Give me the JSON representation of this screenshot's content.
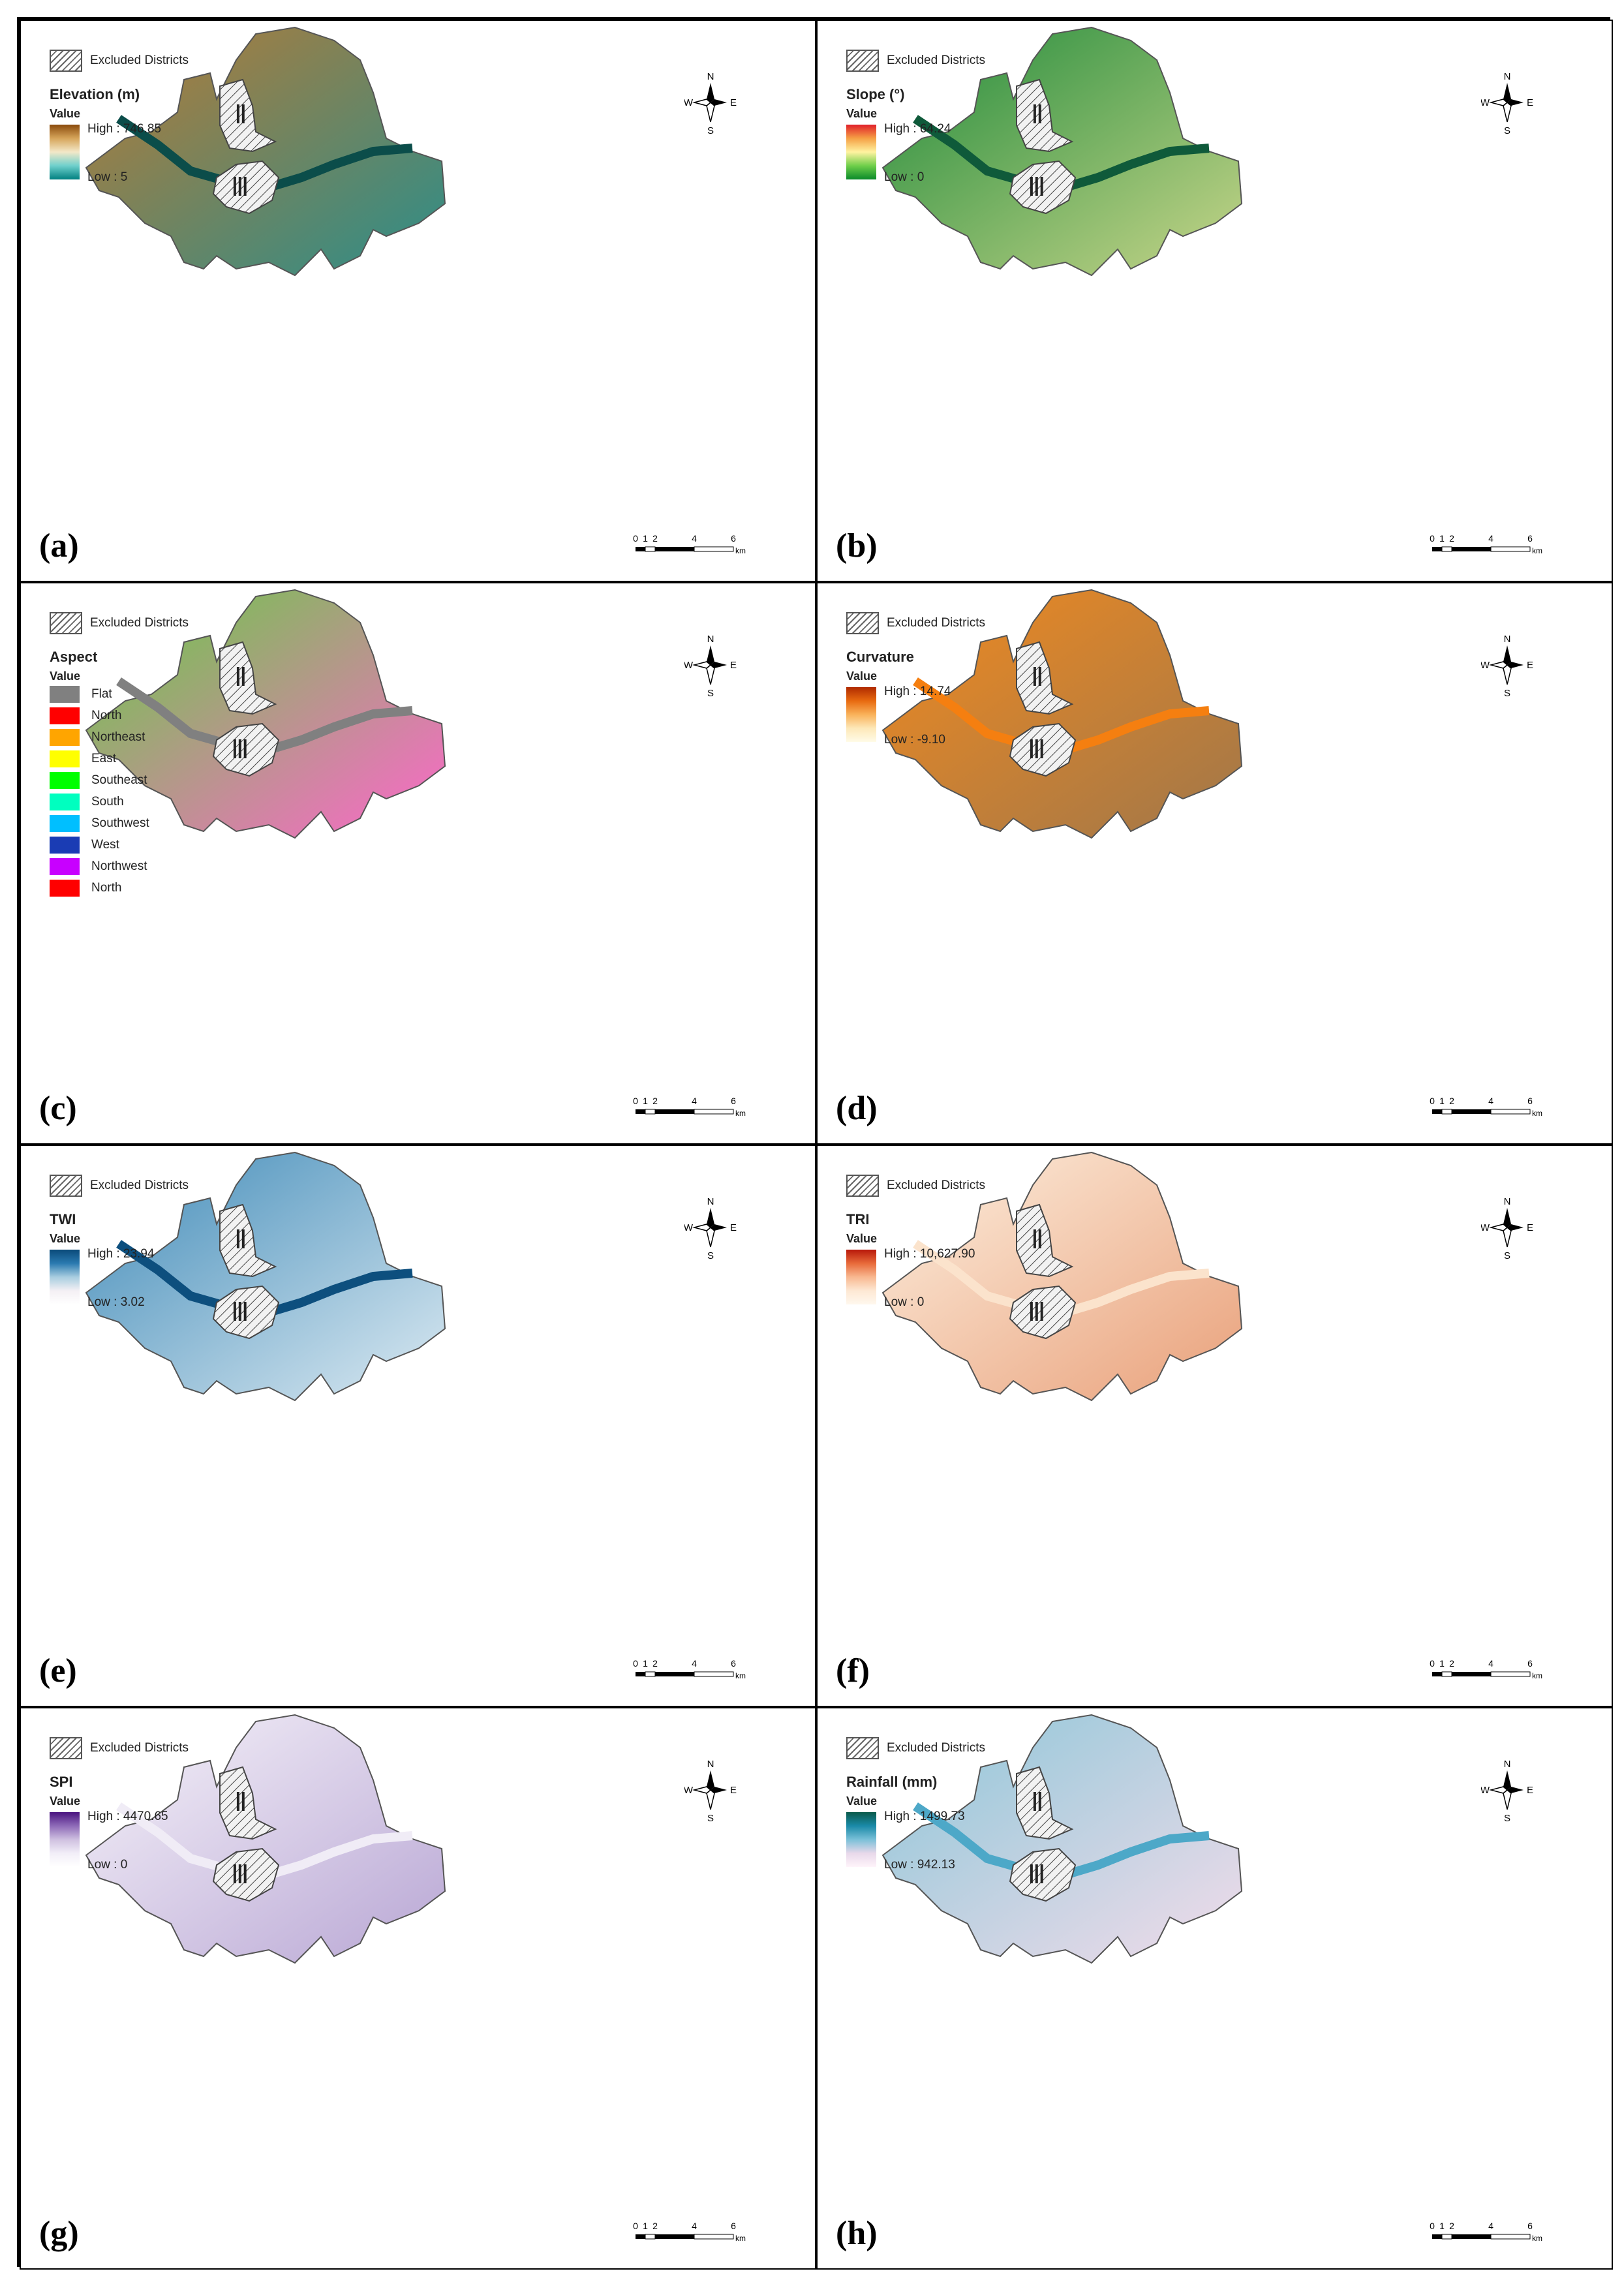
{
  "panels": [
    {
      "id": "a",
      "label": "(a)",
      "excluded": "Excluded Districts",
      "title": "Elevation (m)",
      "value": "Value",
      "high": "High : 746.85",
      "low": "Low : 5",
      "ramp": [
        "#8a4a0c",
        "#d6a55a",
        "#f3e8c8",
        "#6fd0cc",
        "#008080"
      ],
      "fill": [
        "#b87a35",
        "#2b8e8a"
      ],
      "river": "#0b4d4a"
    },
    {
      "id": "b",
      "label": "(b)",
      "excluded": "Excluded Districts",
      "title": "Slope (°)",
      "value": "Value",
      "high": "High : 64.24",
      "low": "Low : 0",
      "ramp": [
        "#e0202a",
        "#f5a045",
        "#fff3a0",
        "#6fcf4a",
        "#0a8a2a"
      ],
      "fill": [
        "#1f8a3a",
        "#c8d68a"
      ],
      "river": "#0f5a3a"
    },
    {
      "id": "c",
      "label": "(c)",
      "excluded": "Excluded Districts",
      "title": "Aspect",
      "value": "Value",
      "categories": [
        {
          "name": "Flat",
          "color": "#808080"
        },
        {
          "name": "North",
          "color": "#ff0000"
        },
        {
          "name": "Northeast",
          "color": "#ffa500"
        },
        {
          "name": "East",
          "color": "#ffff00"
        },
        {
          "name": "Southeast",
          "color": "#00ff00"
        },
        {
          "name": "South",
          "color": "#00ffbf"
        },
        {
          "name": "Southwest",
          "color": "#00bfff"
        },
        {
          "name": "West",
          "color": "#1a3cb4"
        },
        {
          "name": "Northwest",
          "color": "#c800ff"
        },
        {
          "name": "North",
          "color": "#ff0000"
        }
      ],
      "fill": [
        "#66cc44",
        "#ff66cc"
      ],
      "river": "#808080"
    },
    {
      "id": "d",
      "label": "(d)",
      "excluded": "Excluded Districts",
      "title": "Curvature",
      "value": "Value",
      "high": "High : 14.74",
      "low": "Low : -9.10",
      "ramp": [
        "#b02a00",
        "#e86a10",
        "#f9b25a",
        "#fde8b8",
        "#fffbe8"
      ],
      "fill": [
        "#f08a20",
        "#a0774a"
      ],
      "river": "#f57f10"
    },
    {
      "id": "e",
      "label": "(e)",
      "excluded": "Excluded Districts",
      "title": "TWI",
      "value": "Value",
      "high": "High : 23.94",
      "low": "Low : 3.02",
      "ramp": [
        "#0a4a7a",
        "#2a7ab0",
        "#a8cde0",
        "#f4f0f4",
        "#ffffff"
      ],
      "fill": [
        "#3f8ab8",
        "#dceaf2"
      ],
      "river": "#0d4f7e"
    },
    {
      "id": "f",
      "label": "(f)",
      "excluded": "Excluded Districts",
      "title": "TRI",
      "value": "Value",
      "high": "High : 10,627.90",
      "low": "Low : 0",
      "ramp": [
        "#b8180a",
        "#e86a3a",
        "#f8b890",
        "#fde8d4",
        "#fff8ee"
      ],
      "fill": [
        "#fdf0e0",
        "#e9a07a"
      ],
      "river": "#fbe3cc"
    },
    {
      "id": "g",
      "label": "(g)",
      "excluded": "Excluded Districts",
      "title": "SPI",
      "value": "Value",
      "high": "High : 4470.65",
      "low": "Low : 0",
      "ramp": [
        "#4a1480",
        "#8e6ab8",
        "#cfc0e0",
        "#f2eef8",
        "#ffffff"
      ],
      "fill": [
        "#f7f4fa",
        "#b8a6d4"
      ],
      "river": "#f0ecf6"
    },
    {
      "id": "h",
      "label": "(h)",
      "excluded": "Excluded Districts",
      "title": "Rainfall (mm)",
      "value": "Value",
      "high": "High : 1499.73",
      "low": "Low : 942.13",
      "ramp": [
        "#0a5a4a",
        "#1a8aa8",
        "#7ac0d8",
        "#e8d8ea",
        "#fff4fa"
      ],
      "fill": [
        "#8cc6d8",
        "#f2dcea"
      ],
      "river": "#4da8c8"
    }
  ],
  "districts": {
    "north": "Ⅱ",
    "center": "Ⅲ"
  },
  "compass": {
    "n": "N",
    "s": "S",
    "e": "E",
    "w": "W"
  },
  "scale": {
    "ticks": [
      "0",
      "1",
      "2",
      "4",
      "6"
    ],
    "unit": "km"
  }
}
